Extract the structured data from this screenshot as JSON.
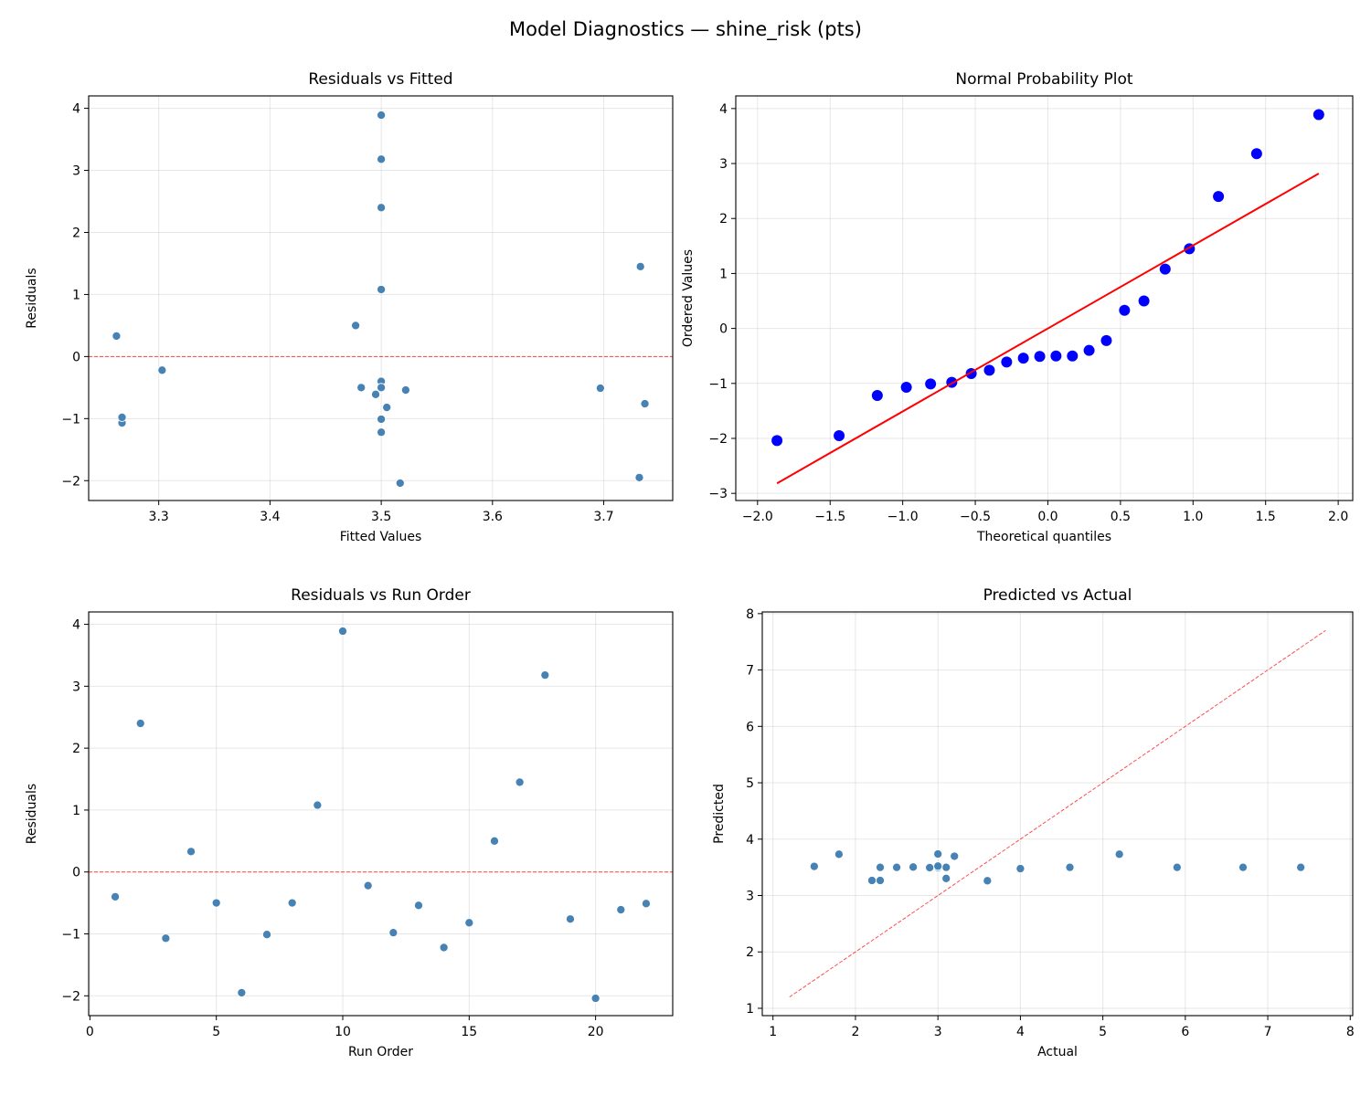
{
  "figure": {
    "title": "Model Diagnostics — shine_risk (pts)"
  },
  "chart_data": [
    {
      "type": "scatter",
      "title": "Residuals vs Fitted",
      "xlabel": "Fitted Values",
      "ylabel": "Residuals",
      "xlim": [
        3.237,
        3.762
      ],
      "ylim": [
        -2.32,
        4.2
      ],
      "xticks": [
        3.3,
        3.4,
        3.5,
        3.6,
        3.7
      ],
      "xtick_labels": [
        "3.3",
        "3.4",
        "3.5",
        "3.6",
        "3.7"
      ],
      "yticks": [
        -2,
        -1,
        0,
        1,
        2,
        3,
        4
      ],
      "ytick_labels": [
        "−2",
        "−1",
        "0",
        "1",
        "2",
        "3",
        "4"
      ],
      "grid": true,
      "marker_color": "#4682b4",
      "reference_line": {
        "kind": "horizontal",
        "y": 0,
        "style": "dashed",
        "color": "#ff0000"
      },
      "x": [
        3.5,
        3.5,
        3.267,
        3.262,
        3.482,
        3.732,
        3.5,
        3.5,
        3.5,
        3.5,
        3.303,
        3.267,
        3.522,
        3.5,
        3.505,
        3.477,
        3.733,
        3.5,
        3.737,
        3.517,
        3.495,
        3.697
      ],
      "y": [
        -0.4,
        2.4,
        -1.07,
        0.33,
        -0.5,
        -1.95,
        -1.01,
        -0.5,
        1.08,
        3.89,
        -0.22,
        -0.98,
        -0.54,
        -1.22,
        -0.82,
        0.5,
        1.45,
        3.18,
        -0.76,
        -2.04,
        -0.61,
        -0.51
      ]
    },
    {
      "type": "scatter",
      "title": "Normal Probability Plot",
      "xlabel": "Theoretical quantiles",
      "ylabel": "Ordered Values",
      "xlim": [
        -2.15,
        2.1
      ],
      "ylim": [
        -3.13,
        4.23
      ],
      "xticks": [
        -2.0,
        -1.5,
        -1.0,
        -0.5,
        0.0,
        0.5,
        1.0,
        1.5,
        2.0
      ],
      "xtick_labels": [
        "−2.0",
        "−1.5",
        "−1.0",
        "−0.5",
        "0.0",
        "0.5",
        "1.0",
        "1.5",
        "2.0"
      ],
      "yticks": [
        -3,
        -2,
        -1,
        0,
        1,
        2,
        3,
        4
      ],
      "ytick_labels": [
        "−3",
        "−2",
        "−1",
        "0",
        "1",
        "2",
        "3",
        "4"
      ],
      "grid": true,
      "marker_color": "#0000ff",
      "fit_line": {
        "slope": 1.51,
        "intercept": 0.0,
        "color": "#ff0000",
        "style": "solid"
      },
      "x": [
        -1.866,
        -1.438,
        -1.175,
        -0.975,
        -0.808,
        -0.662,
        -0.528,
        -0.403,
        -0.284,
        -0.169,
        -0.056,
        0.056,
        0.169,
        0.284,
        0.403,
        0.528,
        0.662,
        0.808,
        0.975,
        1.175,
        1.438,
        1.866
      ],
      "y": [
        -2.04,
        -1.95,
        -1.22,
        -1.07,
        -1.01,
        -0.98,
        -0.82,
        -0.76,
        -0.61,
        -0.54,
        -0.51,
        -0.5,
        -0.5,
        -0.4,
        -0.22,
        0.33,
        0.5,
        1.08,
        1.45,
        2.4,
        3.18,
        3.89
      ]
    },
    {
      "type": "scatter",
      "title": "Residuals vs Run Order",
      "xlabel": "Run Order",
      "ylabel": "Residuals",
      "xlim": [
        -0.05,
        23.05
      ],
      "ylim": [
        -2.32,
        4.2
      ],
      "xticks": [
        0,
        5,
        10,
        15,
        20
      ],
      "xtick_labels": [
        "0",
        "5",
        "10",
        "15",
        "20"
      ],
      "yticks": [
        -2,
        -1,
        0,
        1,
        2,
        3,
        4
      ],
      "ytick_labels": [
        "−2",
        "−1",
        "0",
        "1",
        "2",
        "3",
        "4"
      ],
      "grid": true,
      "marker_color": "#4682b4",
      "reference_line": {
        "kind": "horizontal",
        "y": 0,
        "style": "dashed",
        "color": "#ff0000"
      },
      "x": [
        1,
        2,
        3,
        4,
        5,
        6,
        7,
        8,
        9,
        10,
        11,
        12,
        13,
        14,
        15,
        16,
        17,
        18,
        19,
        20,
        21,
        22
      ],
      "y": [
        -0.4,
        2.4,
        -1.07,
        0.33,
        -0.5,
        -1.95,
        -1.01,
        -0.5,
        1.08,
        3.89,
        -0.22,
        -0.98,
        -0.54,
        -1.22,
        -0.82,
        0.5,
        1.45,
        3.18,
        -0.76,
        -2.04,
        -0.61,
        -0.51
      ]
    },
    {
      "type": "scatter",
      "title": "Predicted vs Actual",
      "xlabel": "Actual",
      "ylabel": "Predicted",
      "xlim": [
        0.87,
        8.03
      ],
      "ylim": [
        0.87,
        8.03
      ],
      "xticks": [
        1,
        2,
        3,
        4,
        5,
        6,
        7,
        8
      ],
      "xtick_labels": [
        "1",
        "2",
        "3",
        "4",
        "5",
        "6",
        "7",
        "8"
      ],
      "yticks": [
        1,
        2,
        3,
        4,
        5,
        6,
        7,
        8
      ],
      "ytick_labels": [
        "1",
        "2",
        "3",
        "4",
        "5",
        "6",
        "7",
        "8"
      ],
      "grid": true,
      "marker_color": "#4682b4",
      "reference_line": {
        "kind": "identity",
        "from": 1.2,
        "to": 7.7,
        "style": "dashed",
        "color": "#ff0000"
      },
      "x": [
        3.1,
        5.9,
        2.2,
        3.6,
        3.0,
        1.8,
        2.5,
        3.0,
        4.6,
        7.4,
        3.1,
        2.3,
        3.0,
        2.3,
        2.7,
        4.0,
        5.2,
        6.7,
        3.0,
        1.5,
        2.9,
        3.2
      ],
      "y": [
        3.5,
        3.5,
        3.267,
        3.262,
        3.482,
        3.732,
        3.5,
        3.5,
        3.5,
        3.5,
        3.303,
        3.267,
        3.522,
        3.5,
        3.505,
        3.477,
        3.733,
        3.5,
        3.737,
        3.517,
        3.495,
        3.697
      ]
    }
  ]
}
